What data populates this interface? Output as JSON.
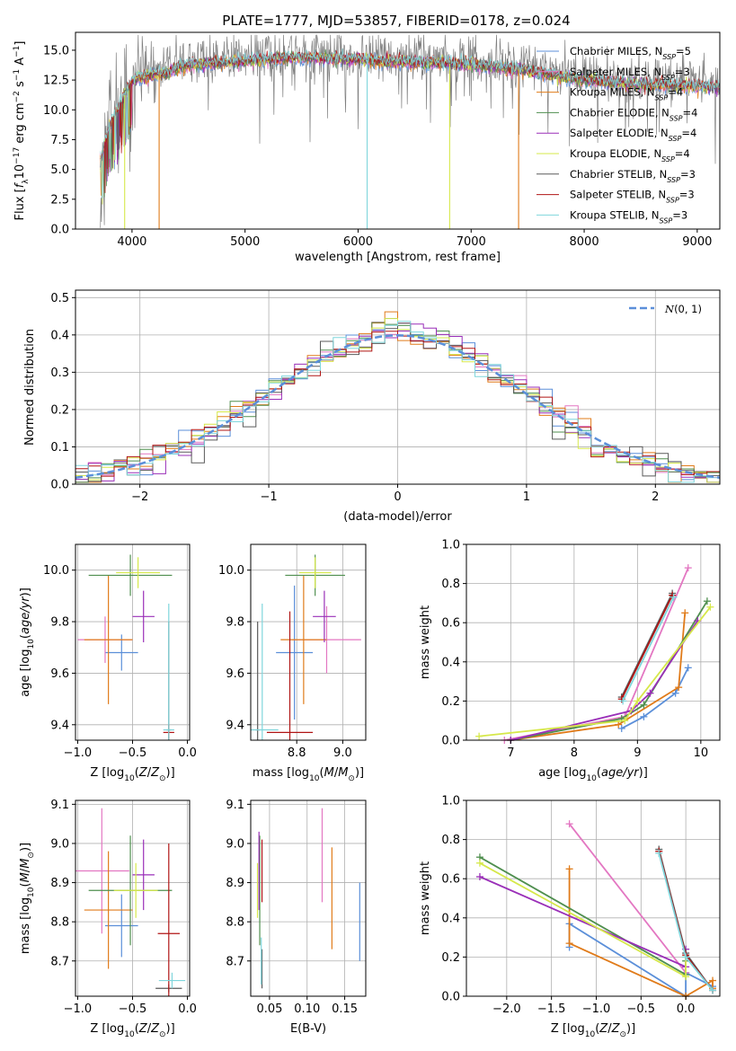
{
  "title": "PLATE=1777, MJD=53857, FIBERID=0178, z=0.024",
  "colors": {
    "Chabrier MILES": "#5b8fd9",
    "Salpeter MILES": "#e377c2",
    "Kroupa MILES": "#e07b1a",
    "Chabrier ELODIE": "#4f8f4f",
    "Salpeter ELODIE": "#9a2fb8",
    "Kroupa ELODIE": "#d6e84a",
    "Chabrier STELIB": "#5a5a5a",
    "Salpeter STELIB": "#b01515",
    "Kroupa STELIB": "#7fd6dc",
    "data": "#808080",
    "gaussian": "#5b8fd9"
  },
  "legend_spectrum": [
    "Chabrier MILES, N_SSP=5",
    "Salpeter MILES, N_SSP=3",
    "Kroupa MILES, N_SSP=4",
    "Chabrier ELODIE, N_SSP=4",
    "Salpeter ELODIE, N_SSP=4",
    "Kroupa ELODIE, N_SSP=4",
    "Chabrier STELIB, N_SSP=3",
    "Salpeter STELIB, N_SSP=3",
    "Kroupa STELIB, N_SSP=3"
  ],
  "legend_hist": "N(0, 1)",
  "chart_data": [
    {
      "type": "line",
      "title": "PLATE=1777, MJD=53857, FIBERID=0178, z=0.024",
      "xlabel": "wavelength [Angstrom, rest frame]",
      "ylabel": "Flux [f_λ 10^-17 erg cm^-2 s^-1 A^-1]",
      "xlim": [
        3500,
        9200
      ],
      "ylim": [
        0,
        16.5
      ],
      "xticks": [
        4000,
        5000,
        6000,
        7000,
        8000,
        9000
      ],
      "yticks": [
        0.0,
        2.5,
        5.0,
        7.5,
        10.0,
        12.5,
        15.0
      ],
      "continuum": {
        "x": [
          3720,
          3800,
          3900,
          4000,
          4100,
          4300,
          4500,
          5000,
          5500,
          6000,
          6500,
          7000,
          7400,
          7600,
          8000,
          8500,
          9000,
          9200
        ],
        "y": [
          6.0,
          9.0,
          11.0,
          12.8,
          13.2,
          13.5,
          14.2,
          14.5,
          14.8,
          14.6,
          14.4,
          14.2,
          13.8,
          13.5,
          12.9,
          12.5,
          12.4,
          12.3
        ]
      },
      "dropouts": [
        {
          "x": 4240,
          "series": "Kroupa MILES"
        },
        {
          "x": 3935,
          "series": "Kroupa ELODIE"
        },
        {
          "x": 6080,
          "series": "Kroupa STELIB"
        },
        {
          "x": 6810,
          "series": "Kroupa ELODIE"
        },
        {
          "x": 7420,
          "series": "Kroupa MILES"
        }
      ]
    },
    {
      "type": "histogram",
      "xlabel": "(data-model)/error",
      "ylabel": "Normed distribution",
      "xlim": [
        -2.5,
        2.5
      ],
      "ylim": [
        0,
        0.52
      ],
      "xticks": [
        -2,
        -1,
        0,
        1,
        2
      ],
      "yticks": [
        0.0,
        0.1,
        0.2,
        0.3,
        0.4,
        0.5
      ],
      "bin_width": 0.1,
      "gaussian_reference": {
        "mean": 0,
        "sigma": 1
      }
    },
    {
      "type": "scatter",
      "xlabel": "Z [log10(Z/Z_sun)]",
      "ylabel": "age [log10(age/yr)]",
      "xlim": [
        -1.02,
        0.02
      ],
      "ylim": [
        9.34,
        10.1
      ],
      "xticks": [
        -1.0,
        -0.5,
        0.0
      ],
      "yticks": [
        9.4,
        9.6,
        9.8,
        10.0
      ],
      "points": [
        {
          "series": "Chabrier MILES",
          "x": -0.6,
          "y": 9.68,
          "xerr": 0.15,
          "yerr": 0.07
        },
        {
          "series": "Salpeter MILES",
          "x": -0.75,
          "y": 9.73,
          "xerr": 0.25,
          "yerr": 0.09
        },
        {
          "series": "Kroupa MILES",
          "x": -0.72,
          "y": 9.73,
          "xerr": 0.22,
          "yerr": 0.25
        },
        {
          "series": "Chabrier ELODIE",
          "x": -0.52,
          "y": 9.98,
          "xerr": 0.38,
          "yerr": 0.08
        },
        {
          "series": "Salpeter ELODIE",
          "x": -0.4,
          "y": 9.82,
          "xerr": 0.1,
          "yerr": 0.1
        },
        {
          "series": "Kroupa ELODIE",
          "x": -0.45,
          "y": 9.99,
          "xerr": 0.2,
          "yerr": 0.06
        },
        {
          "series": "Chabrier STELIB",
          "x": -0.17,
          "y": 9.38,
          "xerr": 0.02,
          "yerr": 0.42
        },
        {
          "series": "Salpeter STELIB",
          "x": -0.17,
          "y": 9.37,
          "xerr": 0.05,
          "yerr": 0.03
        },
        {
          "series": "Kroupa STELIB",
          "x": -0.17,
          "y": 9.38,
          "xerr": 0.05,
          "yerr": 0.49
        }
      ]
    },
    {
      "type": "scatter",
      "xlabel": "mass [log10(M/M_sun)]",
      "ylabel": "",
      "xlim": [
        8.6,
        9.1
      ],
      "ylim": [
        9.34,
        10.1
      ],
      "xticks": [
        8.8,
        9.0
      ],
      "yticks": [
        9.4,
        9.6,
        9.8,
        10.0
      ],
      "points": [
        {
          "series": "Chabrier MILES",
          "x": 8.79,
          "y": 9.68,
          "xerr": 0.08,
          "yerr": 0.26
        },
        {
          "series": "Salpeter MILES",
          "x": 8.93,
          "y": 9.73,
          "xerr": 0.15,
          "yerr": 0.13
        },
        {
          "series": "Kroupa MILES",
          "x": 8.83,
          "y": 9.73,
          "xerr": 0.1,
          "yerr": 0.25
        },
        {
          "series": "Chabrier ELODIE",
          "x": 8.88,
          "y": 9.98,
          "xerr": 0.13,
          "yerr": 0.08
        },
        {
          "series": "Salpeter ELODIE",
          "x": 8.92,
          "y": 9.82,
          "xerr": 0.05,
          "yerr": 0.1
        },
        {
          "series": "Kroupa ELODIE",
          "x": 8.88,
          "y": 9.99,
          "xerr": 0.07,
          "yerr": 0.06
        },
        {
          "series": "Chabrier STELIB",
          "x": 8.63,
          "y": 9.38,
          "xerr": 0.01,
          "yerr": 0.42
        },
        {
          "series": "Salpeter STELIB",
          "x": 8.77,
          "y": 9.37,
          "xerr": 0.1,
          "yerr": 0.47
        },
        {
          "series": "Kroupa STELIB",
          "x": 8.65,
          "y": 9.38,
          "xerr": 0.07,
          "yerr": 0.49
        }
      ]
    },
    {
      "type": "line",
      "xlabel": "age [log10(age/yr)]",
      "ylabel": "mass weight",
      "xlim": [
        6.3,
        10.3
      ],
      "ylim": [
        0,
        1.0
      ],
      "xticks": [
        7,
        8,
        9,
        10
      ],
      "yticks": [
        0.0,
        0.2,
        0.4,
        0.6,
        0.8,
        1.0
      ],
      "series": [
        {
          "name": "Chabrier MILES",
          "x": [
            8.75,
            9.1,
            9.6,
            9.8
          ],
          "y": [
            0.06,
            0.12,
            0.24,
            0.37
          ]
        },
        {
          "name": "Salpeter MILES",
          "x": [
            6.9,
            8.8,
            9.8
          ],
          "y": [
            0.0,
            0.12,
            0.88
          ]
        },
        {
          "name": "Kroupa MILES",
          "x": [
            7.0,
            8.7,
            9.65,
            9.75
          ],
          "y": [
            0.0,
            0.08,
            0.27,
            0.65
          ]
        },
        {
          "name": "Chabrier ELODIE",
          "x": [
            7.0,
            8.75,
            9.1,
            10.1
          ],
          "y": [
            0.0,
            0.11,
            0.18,
            0.71
          ]
        },
        {
          "name": "Salpeter ELODIE",
          "x": [
            7.0,
            8.9,
            9.2,
            9.95
          ],
          "y": [
            0.0,
            0.15,
            0.24,
            0.61
          ]
        },
        {
          "name": "Kroupa ELODIE",
          "x": [
            6.5,
            8.8,
            9.0,
            10.15
          ],
          "y": [
            0.02,
            0.1,
            0.2,
            0.68
          ]
        },
        {
          "name": "Chabrier STELIB",
          "x": [
            8.75,
            9.55
          ],
          "y": [
            0.22,
            0.75
          ]
        },
        {
          "name": "Salpeter STELIB",
          "x": [
            8.75,
            9.55
          ],
          "y": [
            0.21,
            0.74
          ]
        },
        {
          "name": "Kroupa STELIB",
          "x": [
            8.77,
            9.57
          ],
          "y": [
            0.2,
            0.73
          ]
        }
      ]
    },
    {
      "type": "scatter",
      "xlabel": "Z [log10(Z/Z_sun)]",
      "ylabel": "mass [log10(M/M_sun)]",
      "xlim": [
        -1.02,
        0.02
      ],
      "ylim": [
        8.61,
        9.11
      ],
      "xticks": [
        -1.0,
        -0.5,
        0.0
      ],
      "yticks": [
        8.7,
        8.8,
        8.9,
        9.0,
        9.1
      ],
      "points": [
        {
          "series": "Chabrier MILES",
          "x": -0.6,
          "y": 8.79,
          "xerr": 0.15,
          "yerr": 0.08
        },
        {
          "series": "Salpeter MILES",
          "x": -0.78,
          "y": 8.93,
          "xerr": 0.25,
          "yerr": 0.16
        },
        {
          "series": "Kroupa MILES",
          "x": -0.72,
          "y": 8.83,
          "xerr": 0.22,
          "yerr": 0.15
        },
        {
          "series": "Chabrier ELODIE",
          "x": -0.52,
          "y": 8.88,
          "xerr": 0.38,
          "yerr": 0.14
        },
        {
          "series": "Salpeter ELODIE",
          "x": -0.4,
          "y": 8.92,
          "xerr": 0.1,
          "yerr": 0.09
        },
        {
          "series": "Kroupa ELODIE",
          "x": -0.47,
          "y": 8.88,
          "xerr": 0.2,
          "yerr": 0.07
        },
        {
          "series": "Chabrier STELIB",
          "x": -0.17,
          "y": 8.63,
          "xerr": 0.12,
          "yerr": 0.01
        },
        {
          "series": "Salpeter STELIB",
          "x": -0.17,
          "y": 8.77,
          "xerr": 0.1,
          "yerr": 0.23
        },
        {
          "series": "Kroupa STELIB",
          "x": -0.14,
          "y": 8.65,
          "xerr": 0.12,
          "yerr": 0.02
        }
      ]
    },
    {
      "type": "scatter",
      "xlabel": "E(B-V)",
      "ylabel": "",
      "xlim": [
        0.025,
        0.178
      ],
      "ylim": [
        8.61,
        9.11
      ],
      "xticks": [
        0.05,
        0.1,
        0.15
      ],
      "yticks": [
        8.7,
        8.8,
        8.9,
        9.0,
        9.1
      ],
      "points": [
        {
          "series": "Chabrier MILES",
          "x": 0.17,
          "y": 8.8,
          "yerr": 0.1
        },
        {
          "series": "Salpeter MILES",
          "x": 0.12,
          "y": 8.97,
          "yerr": 0.12
        },
        {
          "series": "Kroupa MILES",
          "x": 0.133,
          "y": 8.86,
          "yerr": 0.13
        },
        {
          "series": "Chabrier ELODIE",
          "x": 0.037,
          "y": 8.88,
          "yerr": 0.14
        },
        {
          "series": "Salpeter ELODIE",
          "x": 0.036,
          "y": 8.93,
          "yerr": 0.1
        },
        {
          "series": "Kroupa ELODIE",
          "x": 0.034,
          "y": 8.88,
          "yerr": 0.07
        },
        {
          "series": "Chabrier STELIB",
          "x": 0.04,
          "y": 8.68,
          "yerr": 0.05
        },
        {
          "series": "Salpeter STELIB",
          "x": 0.04,
          "y": 8.93,
          "yerr": 0.08
        },
        {
          "series": "Kroupa STELIB",
          "x": 0.039,
          "y": 8.7,
          "yerr": 0.06
        }
      ]
    },
    {
      "type": "line",
      "xlabel": "Z [log10(Z/Z_sun)]",
      "ylabel": "mass weight",
      "xlim": [
        -2.45,
        0.38
      ],
      "ylim": [
        0,
        1.0
      ],
      "xticks": [
        -2.0,
        -1.5,
        -1.0,
        -0.5,
        0.0
      ],
      "yticks": [
        0.0,
        0.2,
        0.4,
        0.6,
        0.8,
        1.0
      ],
      "series": [
        {
          "name": "Chabrier MILES",
          "x": [
            -1.3,
            -1.3,
            0.0,
            0.0,
            0.3
          ],
          "y": [
            0.25,
            0.37,
            0.0,
            0.12,
            0.05
          ]
        },
        {
          "name": "Salpeter MILES",
          "x": [
            -1.3,
            0.0
          ],
          "y": [
            0.88,
            0.12
          ]
        },
        {
          "name": "Kroupa MILES",
          "x": [
            -1.3,
            -1.3,
            0.0,
            0.3,
            0.3
          ],
          "y": [
            0.65,
            0.27,
            0.0,
            0.08,
            0.04
          ]
        },
        {
          "name": "Chabrier ELODIE",
          "x": [
            -2.3,
            0.0,
            0.0
          ],
          "y": [
            0.71,
            0.11,
            0.18
          ]
        },
        {
          "name": "Salpeter ELODIE",
          "x": [
            -2.3,
            0.0,
            0.0
          ],
          "y": [
            0.61,
            0.15,
            0.24
          ]
        },
        {
          "name": "Kroupa ELODIE",
          "x": [
            -2.3,
            0.0,
            0.0
          ],
          "y": [
            0.68,
            0.1,
            0.2
          ]
        },
        {
          "name": "Chabrier STELIB",
          "x": [
            -0.3,
            0.0,
            0.3
          ],
          "y": [
            0.75,
            0.22,
            0.03
          ]
        },
        {
          "name": "Salpeter STELIB",
          "x": [
            -0.3,
            0.0,
            0.3
          ],
          "y": [
            0.74,
            0.21,
            0.03
          ]
        },
        {
          "name": "Kroupa STELIB",
          "x": [
            -0.3,
            0.0,
            0.3
          ],
          "y": [
            0.73,
            0.2,
            0.03
          ]
        }
      ]
    }
  ]
}
